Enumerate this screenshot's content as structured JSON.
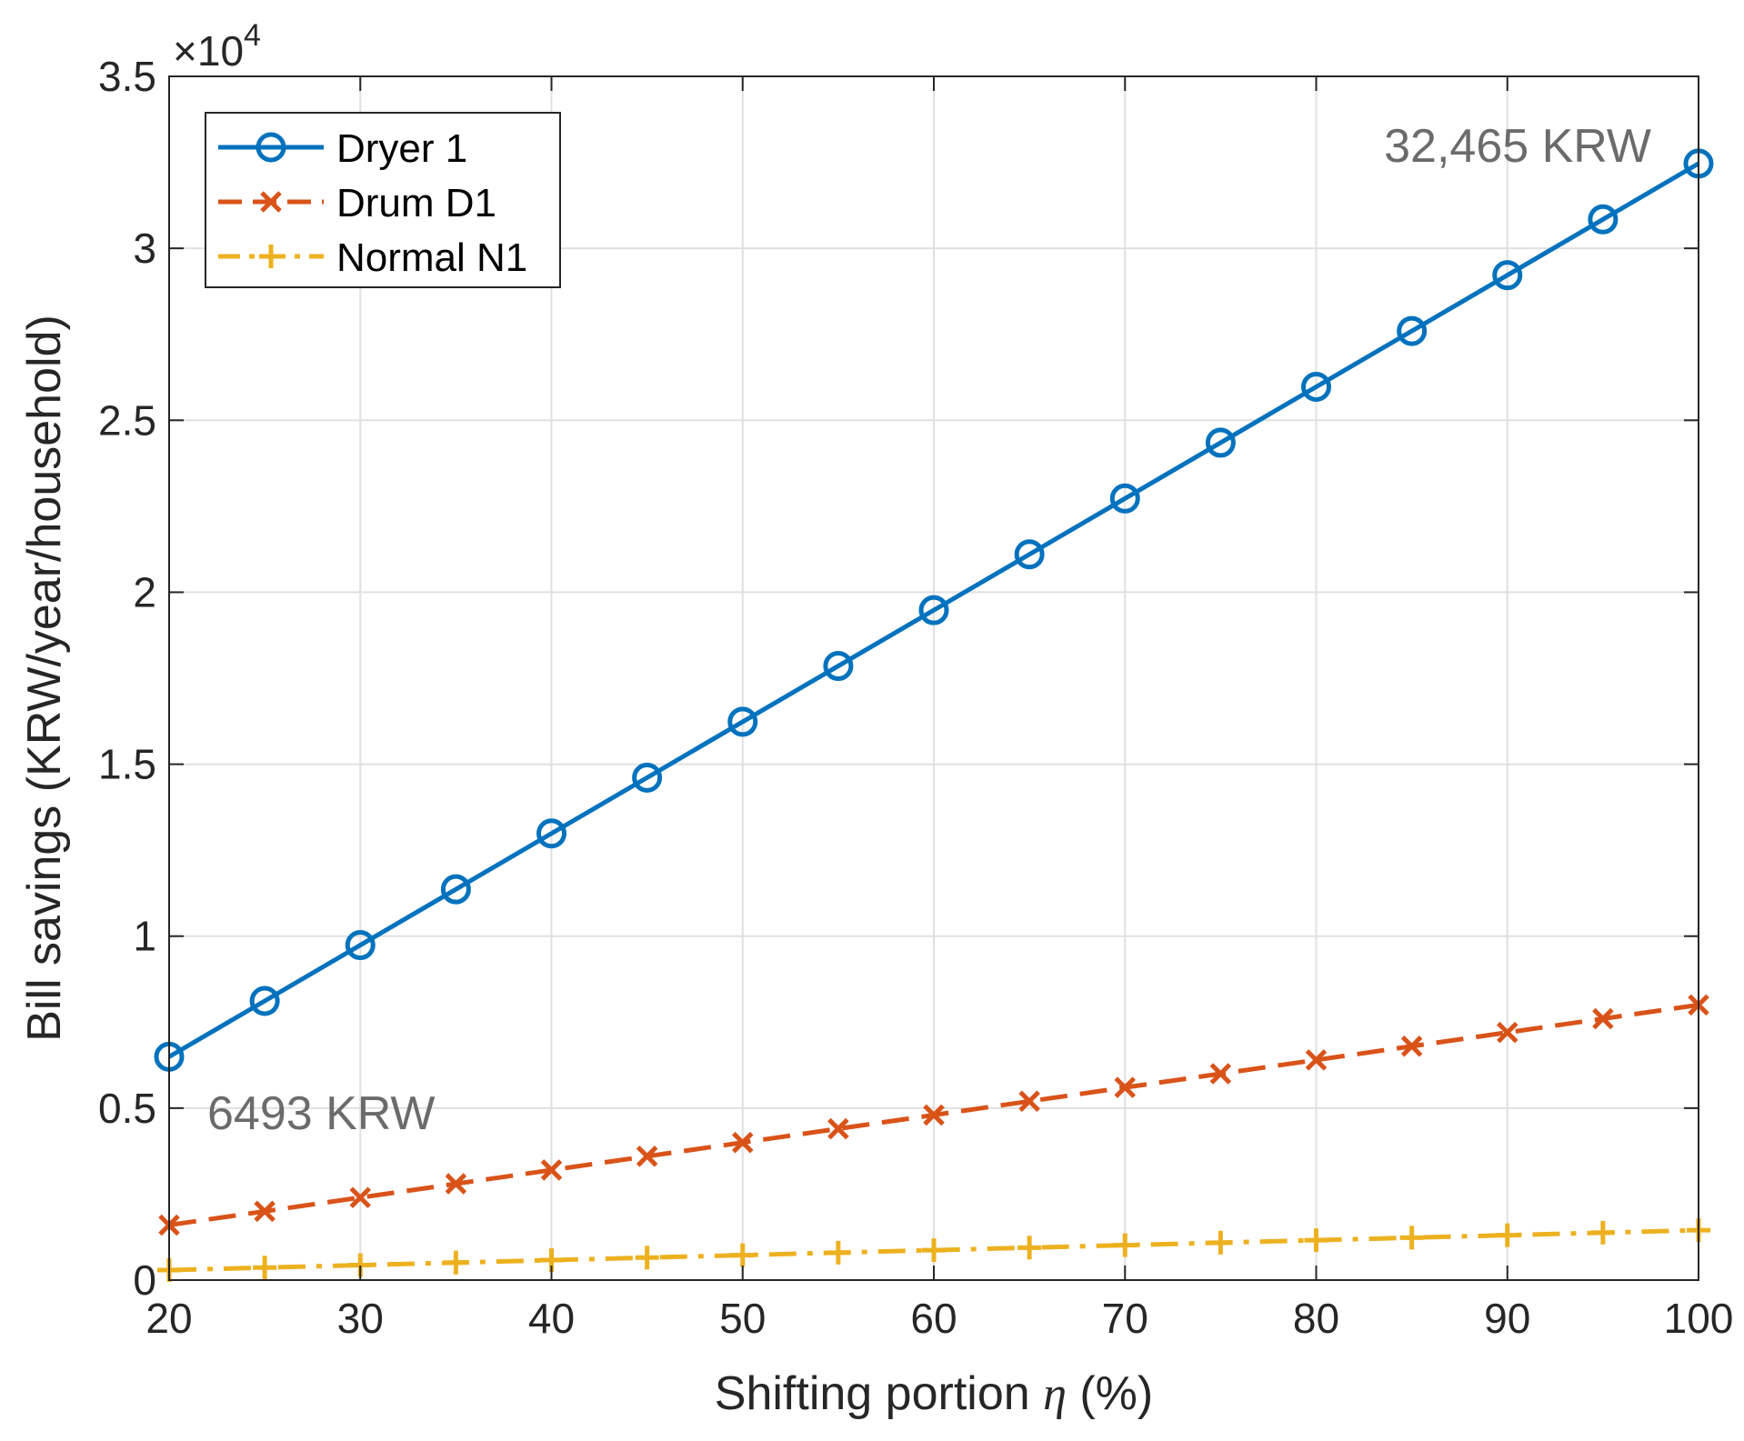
{
  "chart_data": {
    "type": "line",
    "title": "",
    "xlabel": "Shifting portion",
    "xlabel_symbol": "η",
    "xlabel_unit": "(%)",
    "ylabel": "Bill savings (KRW/year/household)",
    "y_multiplier_base": "×10",
    "y_multiplier_exp": "4",
    "xlim": [
      20,
      100
    ],
    "ylim": [
      0,
      35000
    ],
    "grid": true,
    "legend_position": "top-left",
    "x": [
      20,
      25,
      30,
      35,
      40,
      45,
      50,
      55,
      60,
      65,
      70,
      75,
      80,
      85,
      90,
      95,
      100
    ],
    "x_ticks": [
      20,
      30,
      40,
      50,
      60,
      70,
      80,
      90,
      100
    ],
    "y_ticks": [
      0,
      5000,
      10000,
      15000,
      20000,
      25000,
      30000,
      35000
    ],
    "y_tick_labels": [
      "0",
      "0.5",
      "1",
      "1.5",
      "2",
      "2.5",
      "3",
      "3.5"
    ],
    "series": [
      {
        "name": "Dryer 1",
        "color": "#0072BD",
        "line_style": "solid",
        "marker": "circle",
        "values": [
          6493,
          8116,
          9740,
          11363,
          12986,
          14609,
          16233,
          17856,
          19479,
          21102,
          22726,
          24349,
          25972,
          27595,
          29219,
          30842,
          32465
        ]
      },
      {
        "name": "Drum D1",
        "color": "#D95319",
        "line_style": "dashed",
        "marker": "x",
        "values": [
          1600,
          2000,
          2400,
          2800,
          3200,
          3600,
          4000,
          4400,
          4800,
          5200,
          5600,
          6000,
          6400,
          6800,
          7200,
          7600,
          8000
        ]
      },
      {
        "name": "Normal N1",
        "color": "#EDB120",
        "line_style": "dashdot",
        "marker": "plus",
        "values": [
          290,
          363,
          435,
          508,
          580,
          653,
          725,
          798,
          870,
          943,
          1015,
          1088,
          1160,
          1233,
          1305,
          1378,
          1450
        ]
      }
    ],
    "annotations": [
      {
        "text": "32,465 KRW",
        "x": 100,
        "y": 32465,
        "anchor": "end",
        "offset": "above-left"
      },
      {
        "text": "6493 KRW",
        "x": 20,
        "y": 6493,
        "anchor": "start",
        "offset": "below-right"
      }
    ]
  }
}
